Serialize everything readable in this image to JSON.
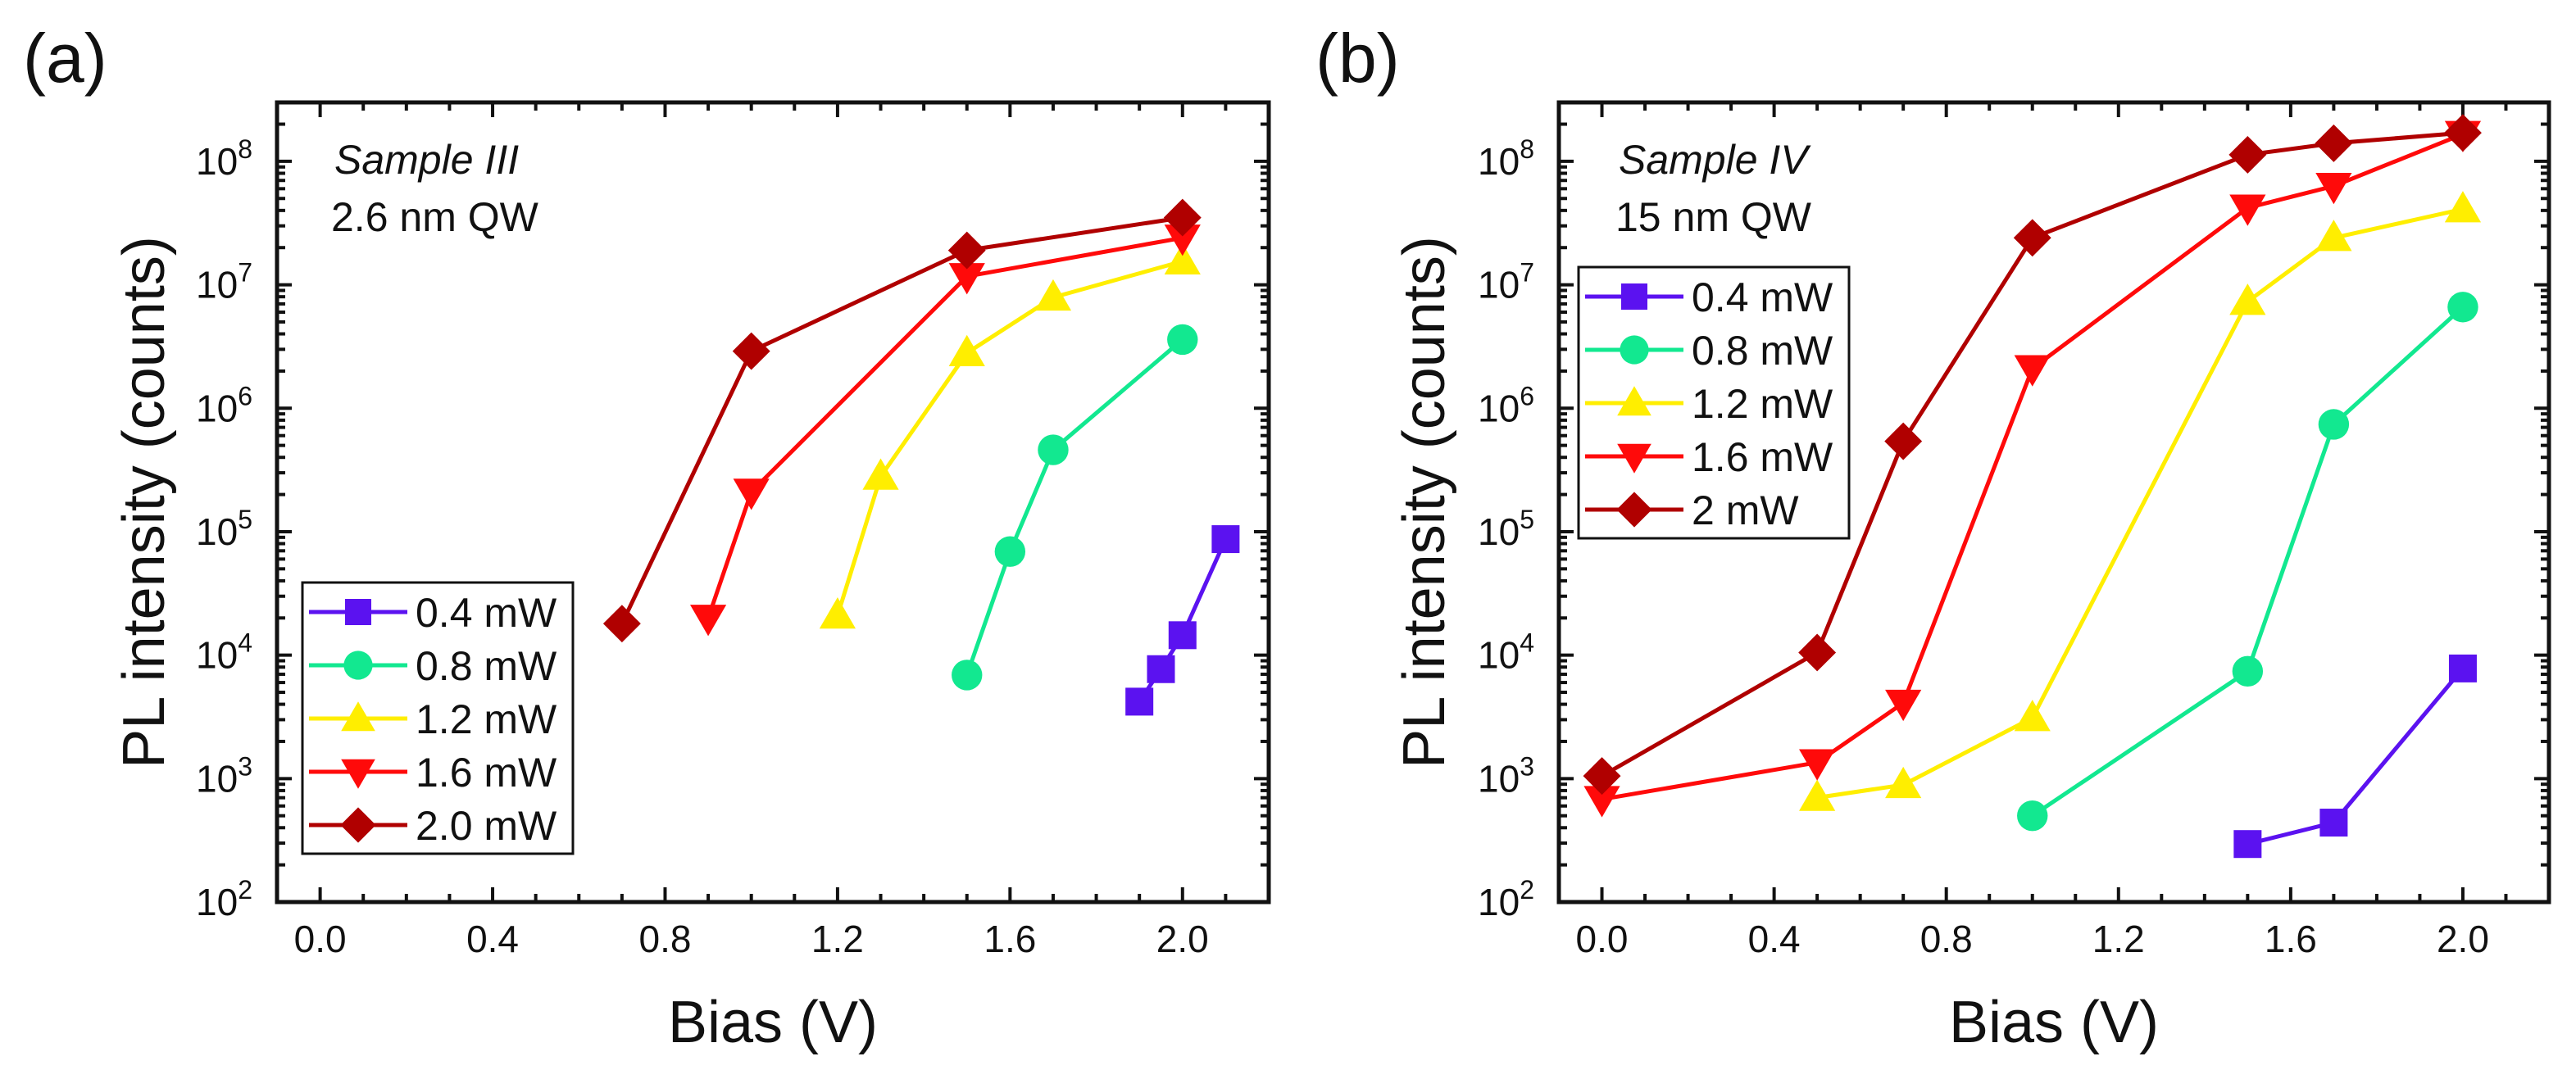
{
  "chart_data": [
    {
      "type": "line",
      "panel_label": "(a)",
      "annotation": {
        "line1": "Sample III",
        "line2": "2.6 nm QW"
      },
      "xlabel": "Bias (V)",
      "ylabel": "PL intensity (counts)",
      "xlim": [
        -0.1,
        2.2
      ],
      "ylim": [
        100,
        300000000
      ],
      "yscale": "log",
      "xticks": [
        "0.0",
        "0.4",
        "0.8",
        "1.2",
        "1.6",
        "2.0"
      ],
      "yticks": [
        "2",
        "3",
        "4",
        "5",
        "6",
        "7",
        "8"
      ],
      "ytick_base": "10",
      "grid": false,
      "legend_position": "bottom-left",
      "series": [
        {
          "name": "0.4 mW",
          "color": "#5b12f0",
          "marker": "square",
          "x": [
            1.9,
            1.95,
            2.0,
            2.1
          ],
          "y": [
            4200,
            7700,
            14500,
            87000
          ]
        },
        {
          "name": "0.8 mW",
          "color": "#12e890",
          "marker": "circle",
          "x": [
            1.5,
            1.6,
            1.7,
            2.0
          ],
          "y": [
            6900,
            69000,
            460000,
            3600000
          ]
        },
        {
          "name": "1.2 mW",
          "color": "#ffee00",
          "marker": "triangle-up",
          "x": [
            1.2,
            1.3,
            1.5,
            1.7,
            2.0
          ],
          "y": [
            21000,
            280000,
            2800000,
            7900000,
            15500000
          ]
        },
        {
          "name": "1.6 mW",
          "color": "#ff0a0a",
          "marker": "triangle-down",
          "x": [
            0.9,
            1.0,
            1.5,
            2.0
          ],
          "y": [
            20000,
            210000,
            11700000,
            24000000
          ]
        },
        {
          "name": "2.0 mW",
          "color": "#b00000",
          "marker": "diamond",
          "x": [
            0.7,
            1.0,
            1.5,
            2.0
          ],
          "y": [
            18000,
            2900000,
            19000000,
            35000000
          ]
        }
      ]
    },
    {
      "type": "line",
      "panel_label": "(b)",
      "annotation": {
        "line1": "Sample IV",
        "line2": "15 nm QW"
      },
      "xlabel": "Bias (V)",
      "ylabel": "PL intensity (counts)",
      "xlim": [
        -0.1,
        2.2
      ],
      "ylim": [
        100,
        300000000
      ],
      "yscale": "log",
      "xticks": [
        "0.0",
        "0.4",
        "0.8",
        "1.2",
        "1.6",
        "2.0"
      ],
      "yticks": [
        "2",
        "3",
        "4",
        "5",
        "6",
        "7",
        "8"
      ],
      "ytick_base": "10",
      "grid": false,
      "legend_position": "top-left",
      "series": [
        {
          "name": "0.4 mW",
          "color": "#5b12f0",
          "marker": "square",
          "x": [
            1.5,
            1.7,
            2.0
          ],
          "y": [
            295,
            440,
            7800
          ]
        },
        {
          "name": "0.8 mW",
          "color": "#12e890",
          "marker": "circle",
          "x": [
            1.0,
            1.5,
            1.7,
            2.0
          ],
          "y": [
            500,
            7400,
            740000,
            6600000
          ]
        },
        {
          "name": "1.2 mW",
          "color": "#ffee00",
          "marker": "triangle-up",
          "x": [
            0.5,
            0.7,
            1.0,
            1.5,
            1.7,
            2.0
          ],
          "y": [
            700,
            890,
            3100,
            7300000,
            24000000,
            41000000
          ]
        },
        {
          "name": "1.6 mW",
          "color": "#ff0a0a",
          "marker": "triangle-down",
          "x": [
            0.0,
            0.5,
            0.7,
            1.0,
            1.5,
            1.7,
            2.0
          ],
          "y": [
            680,
            1350,
            4100,
            2100000,
            42000000,
            63000000,
            166000000
          ]
        },
        {
          "name": "2 mW",
          "color": "#b00000",
          "marker": "diamond",
          "x": [
            0.0,
            0.5,
            0.7,
            1.0,
            1.5,
            1.7,
            2.0
          ],
          "y": [
            1050,
            10500,
            540000,
            24000000,
            113000000,
            140000000,
            170000000
          ]
        }
      ]
    }
  ]
}
